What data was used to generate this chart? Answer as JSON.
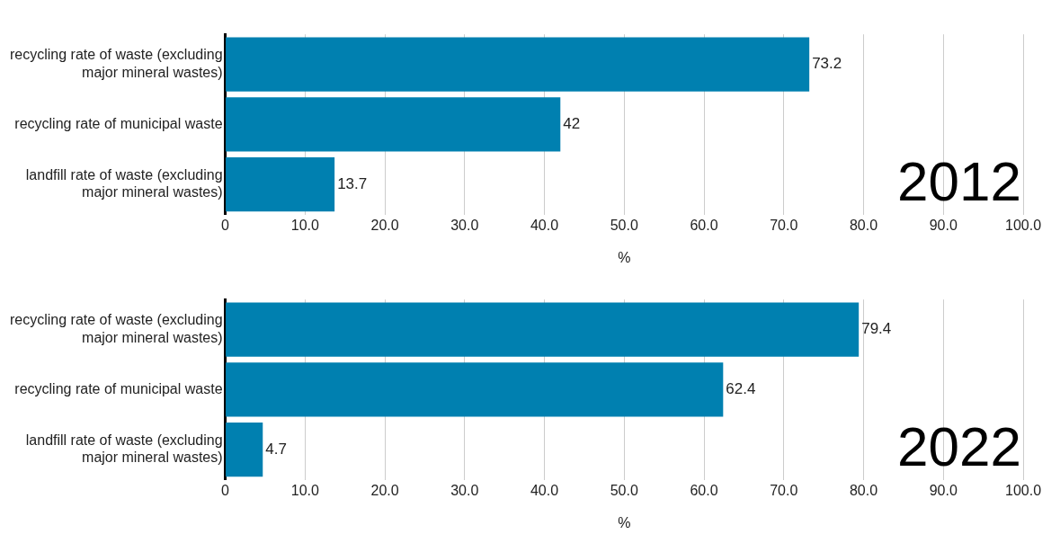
{
  "chart_data": [
    {
      "type": "bar",
      "orientation": "horizontal",
      "categories": [
        "recycling rate of waste (excluding major mineral wastes)",
        "recycling rate of municipal waste",
        "landfill rate of waste (excluding major mineral wastes)"
      ],
      "values": [
        73.2,
        42,
        13.7
      ],
      "color": "#0080b0",
      "xlabel": "%",
      "xlim": [
        0,
        100
      ],
      "xticks": [
        0,
        {
          "value": 10,
          "label": "10.0"
        },
        {
          "value": 20,
          "label": "20.0"
        },
        {
          "value": 30,
          "label": "30.0"
        },
        {
          "value": 40,
          "label": "40.0"
        },
        {
          "value": 50,
          "label": "50.0"
        },
        {
          "value": 60,
          "label": "60.0"
        },
        {
          "value": 70,
          "label": "70.0"
        },
        {
          "value": 80,
          "label": "80.0"
        },
        {
          "value": 90,
          "label": "90.0"
        },
        {
          "value": 100,
          "label": "100.0"
        }
      ],
      "grid": "x",
      "legend": false,
      "data_labels": true,
      "annotations": [
        "2012"
      ]
    },
    {
      "type": "bar",
      "orientation": "horizontal",
      "categories": [
        "recycling rate of waste (excluding major mineral wastes)",
        "recycling rate of municipal waste",
        "landfill rate of waste (excluding major mineral wastes)"
      ],
      "values": [
        79.4,
        62.4,
        4.7
      ],
      "color": "#0080b0",
      "xlabel": "%",
      "xlim": [
        0,
        100
      ],
      "xticks": [
        0,
        {
          "value": 10,
          "label": "10.0"
        },
        {
          "value": 20,
          "label": "20.0"
        },
        {
          "value": 30,
          "label": "30.0"
        },
        {
          "value": 40,
          "label": "40.0"
        },
        {
          "value": 50,
          "label": "50.0"
        },
        {
          "value": 60,
          "label": "60.0"
        },
        {
          "value": 70,
          "label": "70.0"
        },
        {
          "value": 80,
          "label": "80.0"
        },
        {
          "value": 90,
          "label": "90.0"
        },
        {
          "value": 100,
          "label": "100.0"
        }
      ],
      "grid": "x",
      "legend": false,
      "data_labels": true,
      "annotations": [
        "2022"
      ]
    }
  ]
}
